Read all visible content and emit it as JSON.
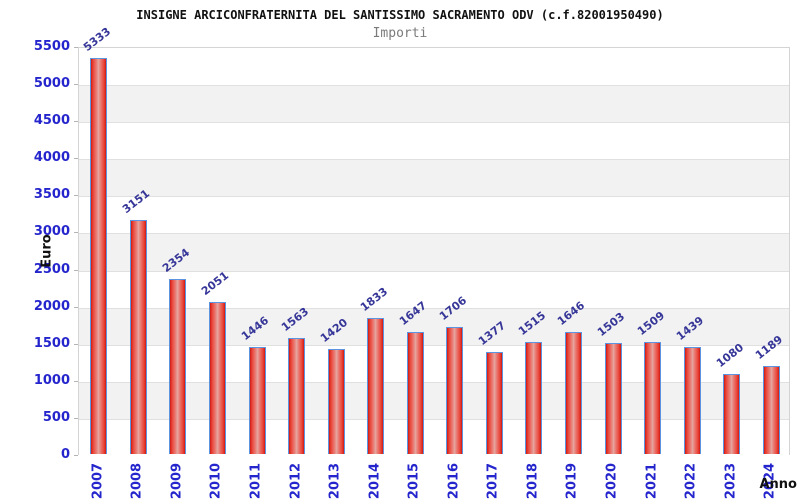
{
  "header": {
    "title": "INSIGNE ARCICONFRATERNITA DEL SANTISSIMO SACRAMENTO ODV (c.f.82001950490)",
    "subtitle": "Importi"
  },
  "chart_data": {
    "type": "bar",
    "title": "INSIGNE ARCICONFRATERNITA DEL SANTISSIMO SACRAMENTO ODV (c.f.82001950490)",
    "subtitle": "Importi",
    "xlabel": "Anno",
    "ylabel": "Euro",
    "categories": [
      "2007",
      "2008",
      "2009",
      "2010",
      "2011",
      "2012",
      "2013",
      "2014",
      "2015",
      "2016",
      "2017",
      "2018",
      "2019",
      "2020",
      "2021",
      "2022",
      "2023",
      "2024"
    ],
    "values": [
      5333,
      3151,
      2354,
      2051,
      1446,
      1563,
      1420,
      1833,
      1647,
      1706,
      1377,
      1515,
      1646,
      1503,
      1509,
      1439,
      1080,
      1189
    ],
    "ylim": [
      0,
      5500
    ],
    "ytick_step": 500,
    "grid": "horizontal-bands-alternating",
    "legend": "none",
    "style": {
      "bar_fill_red": "#e3211b",
      "bar_center_highlight": "#e2aba4",
      "bar_border": "#5b94e0",
      "band_gray": "#f2f2f2",
      "band_white": "#ffffff",
      "gridline": "#e0e0e0",
      "plot_border": "#d4d4d4",
      "tick_label_color": "#2525cd",
      "value_label_color": "#363699",
      "title_color": "#111111",
      "subtitle_color": "#7b7b7b"
    }
  }
}
